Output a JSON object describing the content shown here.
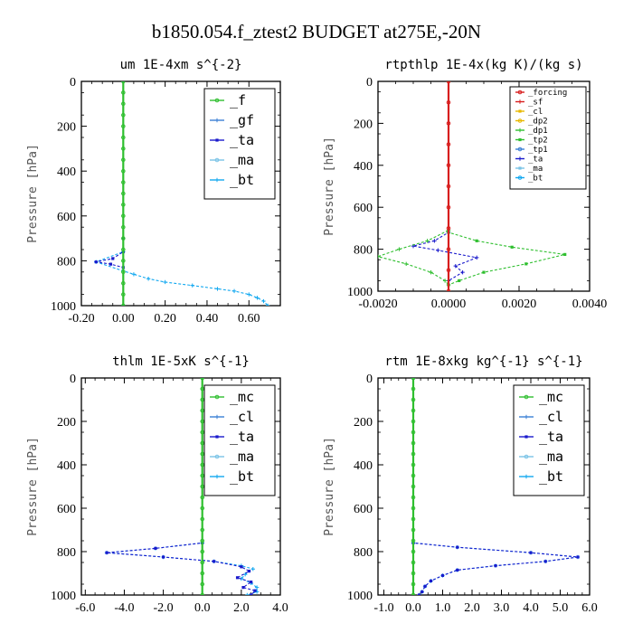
{
  "figure_title": "b1850.054.f_ztest2  BUDGET at275E,-20N",
  "chart_data": [
    {
      "id": "um",
      "type": "line",
      "title": "um   1E-4xm  s^{-2}",
      "ylabel": "Pressure [hPa]",
      "xlim": [
        -0.2,
        0.75
      ],
      "ylim": [
        1000,
        0
      ],
      "xticks": [
        "-0.20",
        "0.00",
        "0.20",
        "0.40",
        "0.60"
      ],
      "xtick_values": [
        -0.2,
        0.0,
        0.2,
        0.4,
        0.6
      ],
      "yticks": [
        "0",
        "200",
        "400",
        "600",
        "800",
        "1000"
      ],
      "ytick_values": [
        0,
        200,
        400,
        600,
        800,
        1000
      ],
      "legend": {
        "position": "top-right",
        "small": false
      },
      "series": [
        {
          "name": "_f",
          "color": "#2fbf2f",
          "points": [
            [
              0,
              0
            ],
            [
              0,
              50
            ],
            [
              0,
              100
            ],
            [
              0,
              150
            ],
            [
              0,
              200
            ],
            [
              0,
              250
            ],
            [
              0,
              300
            ],
            [
              0,
              350
            ],
            [
              0,
              400
            ],
            [
              0,
              450
            ],
            [
              0,
              500
            ],
            [
              0,
              550
            ],
            [
              0,
              600
            ],
            [
              0,
              650
            ],
            [
              0,
              700
            ],
            [
              0,
              750
            ],
            [
              0,
              800
            ],
            [
              0,
              850
            ],
            [
              0,
              900
            ],
            [
              0,
              950
            ],
            [
              0,
              1000
            ]
          ]
        },
        {
          "name": "_gf",
          "color": "#3a7fd5",
          "points": []
        },
        {
          "name": "_ta",
          "color": "#1a1acc",
          "points": [
            [
              0,
              0
            ],
            [
              0,
              700
            ],
            [
              0,
              760
            ],
            [
              -0.05,
              790
            ],
            [
              -0.13,
              805
            ],
            [
              -0.06,
              815
            ],
            [
              0,
              830
            ],
            [
              0,
              1000
            ]
          ]
        },
        {
          "name": "_ma",
          "color": "#7ac3e6",
          "points": []
        },
        {
          "name": "_bt",
          "color": "#12a8f0",
          "points": [
            [
              0,
              0
            ],
            [
              0,
              760
            ],
            [
              -0.13,
              805
            ],
            [
              0,
              845
            ],
            [
              0.05,
              860
            ],
            [
              0.12,
              880
            ],
            [
              0.2,
              895
            ],
            [
              0.33,
              910
            ],
            [
              0.45,
              925
            ],
            [
              0.53,
              935
            ],
            [
              0.6,
              950
            ],
            [
              0.64,
              965
            ],
            [
              0.67,
              980
            ],
            [
              0.69,
              1000
            ]
          ]
        }
      ]
    },
    {
      "id": "rtpthlp",
      "type": "line",
      "title": "rtpthlp   1E-4x(kg K)/(kg s)",
      "ylabel": "Pressure [hPa]",
      "xlim": [
        -0.002,
        0.004
      ],
      "ylim": [
        1000,
        0
      ],
      "xticks": [
        "-0.0020",
        "0.0000",
        "0.0020",
        "0.0040"
      ],
      "xtick_values": [
        -0.002,
        0.0,
        0.002,
        0.004
      ],
      "yticks": [
        "0",
        "200",
        "400",
        "600",
        "800",
        "1000"
      ],
      "ytick_values": [
        0,
        200,
        400,
        600,
        800,
        1000
      ],
      "legend": {
        "position": "top-right",
        "small": true
      },
      "series": [
        {
          "name": "_forcing",
          "color": "#d81e1e",
          "points": [
            [
              0,
              0
            ],
            [
              0,
              100
            ],
            [
              0,
              200
            ],
            [
              0,
              300
            ],
            [
              0,
              400
            ],
            [
              0,
              500
            ],
            [
              0,
              600
            ],
            [
              0,
              700
            ],
            [
              0,
              800
            ],
            [
              0,
              900
            ],
            [
              0,
              1000
            ]
          ]
        },
        {
          "name": "_sf",
          "color": "#d81e1e",
          "points": []
        },
        {
          "name": "_cl",
          "color": "#e8b800",
          "points": []
        },
        {
          "name": "_dp2",
          "color": "#e8b800",
          "points": []
        },
        {
          "name": "_dp1",
          "color": "#2fbf2f",
          "points": [
            [
              0,
              0
            ],
            [
              0,
              710
            ],
            [
              -0.0006,
              760
            ],
            [
              -0.0014,
              800
            ],
            [
              -0.002,
              835
            ],
            [
              -0.0012,
              870
            ],
            [
              -0.0005,
              910
            ],
            [
              -0.0001,
              950
            ],
            [
              0,
              970
            ],
            [
              0,
              1000
            ]
          ]
        },
        {
          "name": "_tp2",
          "color": "#2fbf2f",
          "points": [
            [
              0,
              0
            ],
            [
              0,
              720
            ],
            [
              0.0008,
              760
            ],
            [
              0.0018,
              790
            ],
            [
              0.0033,
              825
            ],
            [
              0.0022,
              870
            ],
            [
              0.001,
              910
            ],
            [
              0.0003,
              950
            ],
            [
              0,
              970
            ],
            [
              0,
              1000
            ]
          ]
        },
        {
          "name": "_tp1",
          "color": "#3a7fd5",
          "points": []
        },
        {
          "name": "_ta",
          "color": "#1a1acc",
          "points": [
            [
              0,
              0
            ],
            [
              0,
              720
            ],
            [
              -0.0004,
              760
            ],
            [
              -0.001,
              785
            ],
            [
              -0.0003,
              805
            ],
            [
              0.0008,
              840
            ],
            [
              0.0002,
              880
            ],
            [
              0.0004,
              910
            ],
            [
              0,
              950
            ],
            [
              0,
              1000
            ]
          ]
        },
        {
          "name": "_ma",
          "color": "#7ac3e6",
          "points": []
        },
        {
          "name": "_bt",
          "color": "#12a8f0",
          "points": []
        }
      ]
    },
    {
      "id": "thlm",
      "type": "line",
      "title": "thlm   1E-5xK  s^{-1}",
      "ylabel": "Pressure [hPa]",
      "xlim": [
        -6.2,
        4.0
      ],
      "ylim": [
        1000,
        0
      ],
      "xticks": [
        "-6.0",
        "-4.0",
        "-2.0",
        "0.0",
        "2.0",
        "4.0"
      ],
      "xtick_values": [
        -6,
        -4,
        -2,
        0,
        2,
        4
      ],
      "yticks": [
        "0",
        "200",
        "400",
        "600",
        "800",
        "1000"
      ],
      "ytick_values": [
        0,
        200,
        400,
        600,
        800,
        1000
      ],
      "legend": {
        "position": "top-right",
        "small": false
      },
      "series": [
        {
          "name": "_mc",
          "color": "#2fbf2f",
          "points": [
            [
              0,
              0
            ],
            [
              0,
              50
            ],
            [
              0,
              100
            ],
            [
              0,
              150
            ],
            [
              0,
              200
            ],
            [
              0,
              250
            ],
            [
              0,
              300
            ],
            [
              0,
              350
            ],
            [
              0,
              400
            ],
            [
              0,
              450
            ],
            [
              0,
              500
            ],
            [
              0,
              550
            ],
            [
              0,
              600
            ],
            [
              0,
              650
            ],
            [
              0,
              700
            ],
            [
              0,
              750
            ],
            [
              0,
              800
            ],
            [
              0,
              850
            ],
            [
              0,
              900
            ],
            [
              0,
              950
            ],
            [
              0,
              1000
            ]
          ]
        },
        {
          "name": "_cl",
          "color": "#3a7fd5",
          "points": []
        },
        {
          "name": "_ta",
          "color": "#1a1acc",
          "points": [
            [
              0,
              0
            ],
            [
              0,
              760
            ],
            [
              -2.4,
              785
            ],
            [
              -4.9,
              805
            ],
            [
              -2.0,
              825
            ],
            [
              0.6,
              845
            ],
            [
              2.0,
              870
            ],
            [
              2.4,
              890
            ],
            [
              1.8,
              920
            ],
            [
              2.5,
              940
            ],
            [
              2.1,
              965
            ],
            [
              2.7,
              980
            ],
            [
              2.5,
              1000
            ]
          ]
        },
        {
          "name": "_ma",
          "color": "#7ac3e6",
          "points": []
        },
        {
          "name": "_bt",
          "color": "#12a8f0",
          "points": [
            [
              0,
              0
            ],
            [
              0,
              760
            ],
            [
              -2.4,
              785
            ],
            [
              -4.9,
              805
            ],
            [
              -2.0,
              825
            ],
            [
              0.6,
              845
            ],
            [
              2.0,
              865
            ],
            [
              2.6,
              880
            ],
            [
              2.2,
              905
            ],
            [
              2.0,
              925
            ],
            [
              2.5,
              945
            ],
            [
              2.8,
              965
            ],
            [
              2.8,
              985
            ],
            [
              2.3,
              1000
            ]
          ]
        }
      ]
    },
    {
      "id": "rtm",
      "type": "line",
      "title": "rtm   1E-8xkg kg^{-1} s^{-1}",
      "ylabel": "Pressure [hPa]",
      "xlim": [
        -1.2,
        6.0
      ],
      "ylim": [
        1000,
        0
      ],
      "xticks": [
        "-1.0",
        "0.0",
        "1.0",
        "2.0",
        "3.0",
        "4.0",
        "5.0",
        "6.0"
      ],
      "xtick_values": [
        -1,
        0,
        1,
        2,
        3,
        4,
        5,
        6
      ],
      "yticks": [
        "0",
        "200",
        "400",
        "600",
        "800",
        "1000"
      ],
      "ytick_values": [
        0,
        200,
        400,
        600,
        800,
        1000
      ],
      "legend": {
        "position": "top-right",
        "small": false
      },
      "series": [
        {
          "name": "_mc",
          "color": "#2fbf2f",
          "points": [
            [
              0,
              0
            ],
            [
              0,
              50
            ],
            [
              0,
              100
            ],
            [
              0,
              150
            ],
            [
              0,
              200
            ],
            [
              0,
              250
            ],
            [
              0,
              300
            ],
            [
              0,
              350
            ],
            [
              0,
              400
            ],
            [
              0,
              450
            ],
            [
              0,
              500
            ],
            [
              0,
              550
            ],
            [
              0,
              600
            ],
            [
              0,
              650
            ],
            [
              0,
              700
            ],
            [
              0,
              750
            ],
            [
              0,
              800
            ],
            [
              0,
              850
            ],
            [
              0,
              900
            ],
            [
              0,
              950
            ],
            [
              0,
              1000
            ]
          ]
        },
        {
          "name": "_cl",
          "color": "#3a7fd5",
          "points": []
        },
        {
          "name": "_ta",
          "color": "#1a1acc",
          "points": [
            [
              0,
              0
            ],
            [
              0,
              760
            ],
            [
              1.5,
              780
            ],
            [
              4.0,
              805
            ],
            [
              5.6,
              825
            ],
            [
              4.5,
              845
            ],
            [
              2.8,
              865
            ],
            [
              1.5,
              885
            ],
            [
              1.0,
              910
            ],
            [
              0.6,
              935
            ],
            [
              0.4,
              960
            ],
            [
              0.3,
              985
            ],
            [
              0.2,
              1000
            ]
          ]
        },
        {
          "name": "_ma",
          "color": "#7ac3e6",
          "points": []
        },
        {
          "name": "_bt",
          "color": "#12a8f0",
          "points": [
            [
              0,
              0
            ],
            [
              0,
              760
            ],
            [
              1.5,
              780
            ],
            [
              4.0,
              805
            ],
            [
              5.6,
              825
            ],
            [
              4.5,
              845
            ],
            [
              2.8,
              865
            ],
            [
              1.5,
              885
            ],
            [
              1.0,
              910
            ],
            [
              0.6,
              935
            ],
            [
              0.4,
              960
            ],
            [
              0.3,
              985
            ],
            [
              0.2,
              1000
            ]
          ]
        }
      ]
    }
  ]
}
